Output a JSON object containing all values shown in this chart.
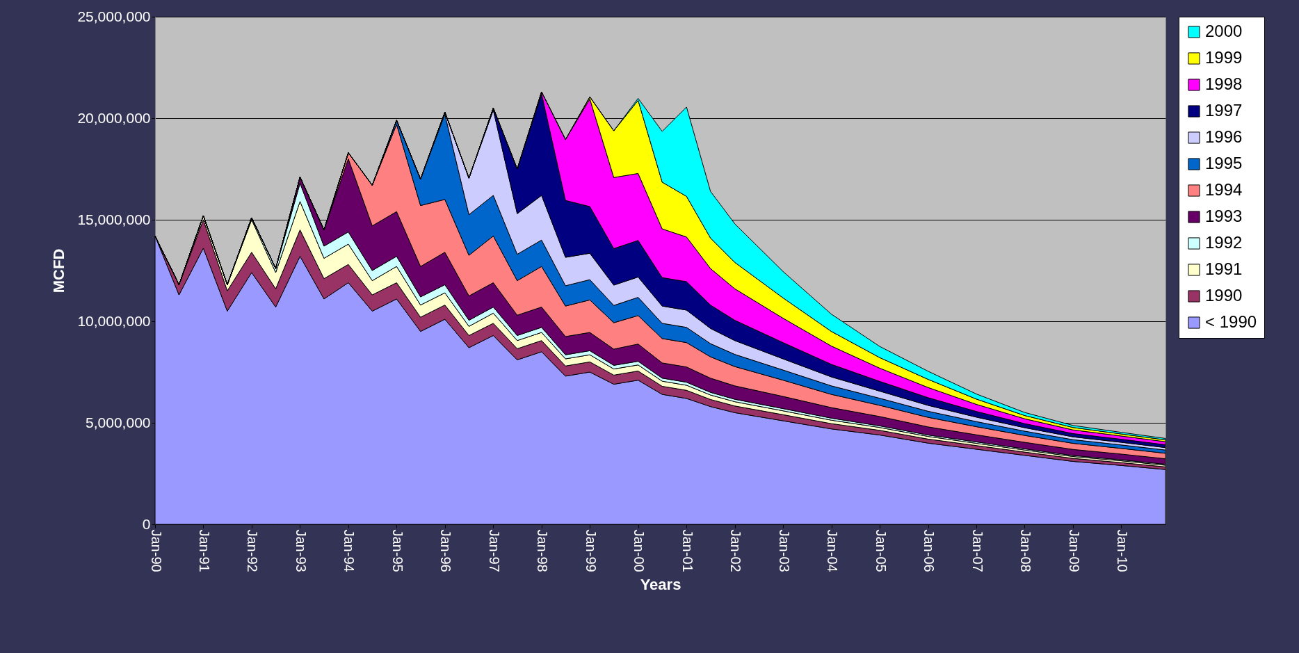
{
  "chart_data": {
    "type": "area",
    "stacked": true,
    "xlabel": "Years",
    "ylabel": "MCFD",
    "x": [
      "1990-01",
      "1990-07",
      "1991-01",
      "1991-07",
      "1992-01",
      "1992-07",
      "1993-01",
      "1993-07",
      "1994-01",
      "1994-07",
      "1995-01",
      "1995-07",
      "1996-01",
      "1996-07",
      "1997-01",
      "1997-07",
      "1998-01",
      "1998-07",
      "1999-01",
      "1999-07",
      "2000-01",
      "2000-07",
      "2001-01",
      "2001-07",
      "2002-01",
      "2003-01",
      "2004-01",
      "2005-01",
      "2006-01",
      "2007-01",
      "2008-01",
      "2009-01",
      "2010-01",
      "2010-12"
    ],
    "series": [
      {
        "name": "< 1990",
        "color": "#9999ff",
        "values": [
          14200000,
          11300000,
          13600000,
          10500000,
          12400000,
          10700000,
          13200000,
          11100000,
          11900000,
          10500000,
          11100000,
          9500000,
          10100000,
          8700000,
          9300000,
          8100000,
          8500000,
          7300000,
          7500000,
          6900000,
          7100000,
          6400000,
          6200000,
          5800000,
          5500000,
          5100000,
          4700000,
          4400000,
          4000000,
          3700000,
          3400000,
          3100000,
          2900000,
          2700000
        ]
      },
      {
        "name": "1990",
        "color": "#993366",
        "values": [
          0,
          500000,
          1400000,
          1000000,
          1000000,
          900000,
          1300000,
          1000000,
          900000,
          800000,
          800000,
          700000,
          700000,
          600000,
          600000,
          550000,
          550000,
          500000,
          500000,
          450000,
          450000,
          400000,
          400000,
          350000,
          330000,
          300000,
          260000,
          230000,
          200000,
          180000,
          160000,
          150000,
          140000,
          130000
        ]
      },
      {
        "name": "1991",
        "color": "#ffffcc",
        "values": [
          0,
          0,
          200000,
          300000,
          1600000,
          800000,
          1400000,
          1000000,
          1000000,
          700000,
          800000,
          600000,
          600000,
          450000,
          500000,
          400000,
          400000,
          350000,
          350000,
          300000,
          300000,
          250000,
          250000,
          220000,
          210000,
          190000,
          170000,
          140000,
          130000,
          110000,
          100000,
          90000,
          90000,
          80000
        ]
      },
      {
        "name": "1992",
        "color": "#ccffff",
        "values": [
          0,
          0,
          0,
          0,
          100000,
          200000,
          900000,
          600000,
          600000,
          500000,
          500000,
          400000,
          400000,
          300000,
          300000,
          250000,
          250000,
          200000,
          200000,
          180000,
          180000,
          150000,
          150000,
          130000,
          120000,
          110000,
          100000,
          80000,
          70000,
          70000,
          60000,
          50000,
          50000,
          50000
        ]
      },
      {
        "name": "1993",
        "color": "#660066",
        "values": [
          0,
          0,
          0,
          0,
          0,
          0,
          300000,
          800000,
          3600000,
          2200000,
          2200000,
          1500000,
          1600000,
          1200000,
          1200000,
          1000000,
          1000000,
          900000,
          900000,
          800000,
          850000,
          750000,
          750000,
          700000,
          660000,
          600000,
          520000,
          460000,
          400000,
          350000,
          320000,
          300000,
          280000,
          270000
        ]
      },
      {
        "name": "1994",
        "color": "#ff8080",
        "values": [
          0,
          0,
          0,
          0,
          0,
          0,
          0,
          0,
          300000,
          2000000,
          4300000,
          3000000,
          2600000,
          2000000,
          2300000,
          1700000,
          2000000,
          1500000,
          1600000,
          1300000,
          1400000,
          1200000,
          1200000,
          1050000,
          950000,
          800000,
          650000,
          550000,
          470000,
          400000,
          340000,
          300000,
          280000,
          270000
        ]
      },
      {
        "name": "1995",
        "color": "#0066cc",
        "values": [
          0,
          0,
          0,
          0,
          0,
          0,
          0,
          0,
          0,
          0,
          200000,
          1300000,
          4200000,
          2000000,
          2000000,
          1300000,
          1300000,
          1000000,
          1000000,
          850000,
          900000,
          750000,
          750000,
          650000,
          600000,
          500000,
          420000,
          350000,
          300000,
          250000,
          210000,
          180000,
          170000,
          160000
        ]
      },
      {
        "name": "1996",
        "color": "#ccccff",
        "values": [
          0,
          0,
          0,
          0,
          0,
          0,
          0,
          0,
          0,
          0,
          0,
          0,
          100000,
          1800000,
          4200000,
          2000000,
          2200000,
          1400000,
          1300000,
          1000000,
          1000000,
          850000,
          850000,
          750000,
          680000,
          550000,
          440000,
          350000,
          290000,
          220000,
          170000,
          140000,
          130000,
          120000
        ]
      },
      {
        "name": "1997",
        "color": "#000080",
        "values": [
          0,
          0,
          0,
          0,
          0,
          0,
          0,
          0,
          0,
          0,
          0,
          0,
          0,
          0,
          100000,
          2200000,
          5000000,
          2800000,
          2300000,
          1800000,
          1800000,
          1400000,
          1400000,
          1150000,
          1000000,
          800000,
          620000,
          480000,
          380000,
          280000,
          200000,
          160000,
          150000,
          140000
        ]
      },
      {
        "name": "1998",
        "color": "#ff00ff",
        "values": [
          0,
          0,
          0,
          0,
          0,
          0,
          0,
          0,
          0,
          0,
          0,
          0,
          0,
          0,
          0,
          0,
          100000,
          3000000,
          5300000,
          3500000,
          3300000,
          2400000,
          2200000,
          1800000,
          1550000,
          1200000,
          900000,
          650000,
          500000,
          350000,
          240000,
          180000,
          160000,
          150000
        ]
      },
      {
        "name": "1999",
        "color": "#ffff00",
        "values": [
          0,
          0,
          0,
          0,
          0,
          0,
          0,
          0,
          0,
          0,
          0,
          0,
          0,
          0,
          0,
          0,
          0,
          0,
          100000,
          2300000,
          3600000,
          2300000,
          2000000,
          1500000,
          1300000,
          1000000,
          720000,
          520000,
          400000,
          260000,
          160000,
          120000,
          100000,
          90000
        ]
      },
      {
        "name": "2000",
        "color": "#00ffff",
        "values": [
          0,
          0,
          0,
          0,
          0,
          0,
          0,
          0,
          0,
          0,
          0,
          0,
          0,
          0,
          0,
          0,
          0,
          0,
          0,
          0,
          100000,
          2500000,
          4400000,
          2300000,
          1900000,
          1300000,
          850000,
          550000,
          400000,
          250000,
          150000,
          100000,
          80000,
          70000
        ]
      }
    ],
    "xlim": [
      "1990-01",
      "2010-12"
    ],
    "xticks": [
      {
        "value": "1990-01",
        "label": "Jan-90"
      },
      {
        "value": "1991-01",
        "label": "Jan-91"
      },
      {
        "value": "1992-01",
        "label": "Jan-92"
      },
      {
        "value": "1993-01",
        "label": "Jan-93"
      },
      {
        "value": "1994-01",
        "label": "Jan-94"
      },
      {
        "value": "1995-01",
        "label": "Jan-95"
      },
      {
        "value": "1996-01",
        "label": "Jan-96"
      },
      {
        "value": "1997-01",
        "label": "Jan-97"
      },
      {
        "value": "1998-01",
        "label": "Jan-98"
      },
      {
        "value": "1999-01",
        "label": "Jan-99"
      },
      {
        "value": "2000-01",
        "label": "Jan-00"
      },
      {
        "value": "2001-01",
        "label": "Jan-01"
      },
      {
        "value": "2002-01",
        "label": "Jan-02"
      },
      {
        "value": "2003-01",
        "label": "Jan-03"
      },
      {
        "value": "2004-01",
        "label": "Jan-04"
      },
      {
        "value": "2005-01",
        "label": "Jan-05"
      },
      {
        "value": "2006-01",
        "label": "Jan-06"
      },
      {
        "value": "2007-01",
        "label": "Jan-07"
      },
      {
        "value": "2008-01",
        "label": "Jan-08"
      },
      {
        "value": "2009-01",
        "label": "Jan-09"
      },
      {
        "value": "2010-01",
        "label": "Jan-10"
      }
    ],
    "ylim": [
      0,
      25000000
    ],
    "yticks": [
      {
        "value": 0,
        "label": "0"
      },
      {
        "value": 5000000,
        "label": "5,000,000"
      },
      {
        "value": 10000000,
        "label": "10,000,000"
      },
      {
        "value": 15000000,
        "label": "15,000,000"
      },
      {
        "value": 20000000,
        "label": "20,000,000"
      },
      {
        "value": 25000000,
        "label": "25,000,000"
      }
    ],
    "grid": "y",
    "legend": "right",
    "line_style": "solid"
  }
}
